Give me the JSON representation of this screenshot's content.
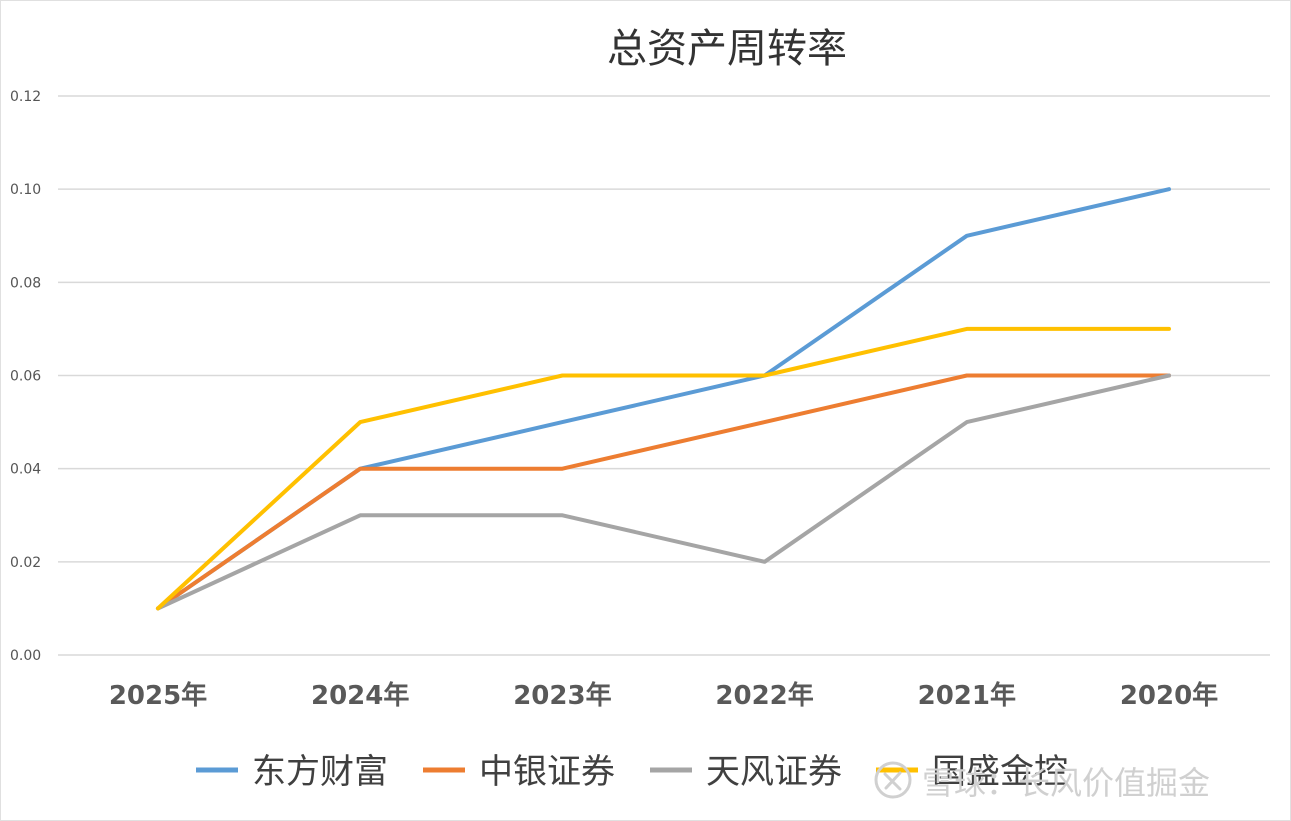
{
  "chart_data": {
    "type": "line",
    "title": "总资产周转率",
    "xlabel": "",
    "ylabel": "",
    "categories": [
      "2025年",
      "2024年",
      "2023年",
      "2022年",
      "2021年",
      "2020年"
    ],
    "ylim": [
      0,
      0.12
    ],
    "yticks": [
      "0.00",
      "0.02",
      "0.04",
      "0.06",
      "0.08",
      "0.10",
      "0.12"
    ],
    "grid": true,
    "legend_position": "bottom",
    "series": [
      {
        "name": "东方财富",
        "color": "#5B9BD5",
        "values": [
          0.01,
          0.04,
          0.05,
          0.06,
          0.09,
          0.1
        ]
      },
      {
        "name": "中银证券",
        "color": "#ED7D31",
        "values": [
          0.01,
          0.04,
          0.04,
          0.05,
          0.06,
          0.06
        ]
      },
      {
        "name": "天风证券",
        "color": "#A5A5A5",
        "values": [
          0.01,
          0.03,
          0.03,
          0.02,
          0.05,
          0.06
        ]
      },
      {
        "name": "国盛金控",
        "color": "#FFC000",
        "values": [
          0.01,
          0.05,
          0.06,
          0.06,
          0.07,
          0.07
        ]
      }
    ]
  },
  "watermark": {
    "text": "雪球：长风价值掘金",
    "icon": "snowball-logo-icon"
  }
}
